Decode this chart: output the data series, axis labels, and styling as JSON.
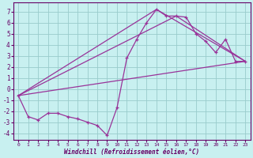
{
  "xlabel": "Windchill (Refroidissement éolien,°C)",
  "bg_color": "#c8f0f0",
  "grid_color": "#99cccc",
  "line_color": "#993399",
  "xlim": [
    -0.5,
    23.5
  ],
  "ylim": [
    -4.6,
    7.8
  ],
  "xticks": [
    0,
    1,
    2,
    3,
    4,
    5,
    6,
    7,
    8,
    9,
    10,
    11,
    12,
    13,
    14,
    15,
    16,
    17,
    18,
    19,
    20,
    21,
    22,
    23
  ],
  "yticks": [
    -4,
    -3,
    -2,
    -1,
    0,
    1,
    2,
    3,
    4,
    5,
    6,
    7
  ],
  "main_line": {
    "x": [
      0,
      1,
      2,
      3,
      4,
      5,
      6,
      7,
      8,
      9,
      10,
      11,
      12,
      13,
      14,
      15,
      16,
      17,
      18,
      19,
      20,
      21,
      22,
      23
    ],
    "y": [
      -0.6,
      -2.5,
      -2.8,
      -2.2,
      -2.2,
      -2.5,
      -2.7,
      -3.0,
      -3.3,
      -4.2,
      -1.7,
      2.8,
      4.5,
      6.0,
      7.2,
      6.6,
      6.6,
      6.5,
      5.0,
      4.3,
      3.3,
      4.5,
      2.5,
      2.5
    ]
  },
  "straight_lines": [
    {
      "x": [
        0,
        23
      ],
      "y": [
        -0.6,
        2.5
      ]
    },
    {
      "x": [
        0,
        16,
        23
      ],
      "y": [
        -0.6,
        6.6,
        2.5
      ]
    },
    {
      "x": [
        0,
        14,
        23
      ],
      "y": [
        -0.6,
        7.2,
        2.5
      ]
    }
  ]
}
